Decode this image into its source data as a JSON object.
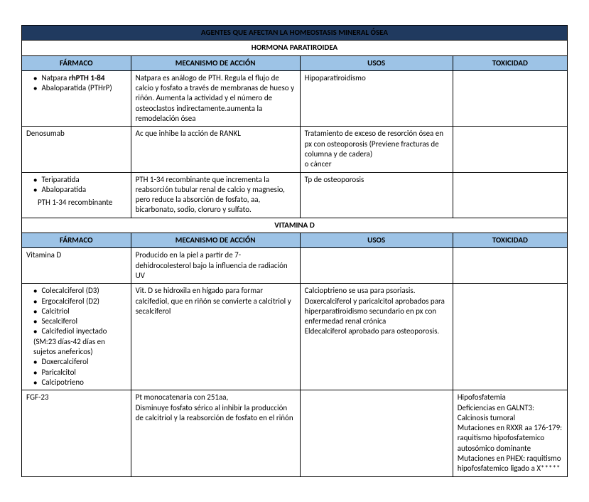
{
  "title": "AGENTES QUE AFECTAN LA HOMEOSTASIS MINERAL ÓSEA",
  "section1": "HORMONA PARATIROIDEA",
  "headers": {
    "f": "FÁRMACO",
    "m": "MECANISMO DE ACCIÓN",
    "u": "USOS",
    "t": "TOXICIDAD"
  },
  "r1": {
    "f1": "Natpara rhPTH 1-84",
    "f2": "Abaloparatida (PTHrP)",
    "m": "Natpara es análogo de PTH. Regula el flujo de calcio y fosfato a través de membranas de hueso y riñón. Aumenta la actividad y el número de osteoclastos indirectamente.aumenta la remodelación ósea",
    "u": "Hipoparatiroidismo"
  },
  "r2": {
    "f": "Denosumab",
    "m": "Ac que inhibe la acción de RANKL",
    "u": "Tratamiento de exceso de resorción ósea en px con osteoporosis (Previene fracturas de columna y de cadera)\n o cáncer"
  },
  "r3": {
    "f1": "Teriparatida",
    "f2": "Abaloparatida",
    "f3": "PTH 1-34 recombinante",
    "m": "PTH 1-34 recombinante que incrementa la reabsorción tubular renal de calcio y magnesio, pero reduce la absorción de fosfato, aa, bicarbonato, sodio, cloruro y sulfato.",
    "u": "Tp de osteoporosis"
  },
  "section2": "VITAMINA D",
  "r4": {
    "f": "Vitamina D",
    "m": "Producido en la piel a partir de 7-dehidrocolesterol bajo la influencia de radiación UV"
  },
  "r5": {
    "f1": "Colecalciferol (D3)",
    "f2": "Ergocalciferol (D2)",
    "f3": "Calcitriol",
    "f4": "Secalciferol",
    "f5": "Calcifediol inyectado (SM:23 días-42 días en sujetos anefericos)",
    "f6": "Doxercalciferol",
    "f7": "Paricalcitol",
    "f8": "Calcipotrieno",
    "m": "Vit. D se hidroxila en hígado para formar calcifediol, que en riñón se convierte a calcitriol y secalciferol",
    "u": "Calcioptrieno se usa para psoriasis.\nDoxercalciferol y paricalcitol aprobados para hiperparatiroidismo secundario en px con enfermedad renal crónica\nEldecalciferol aprobado para osteoporosis."
  },
  "r6": {
    "f": "FGF-23",
    "m": "Pt monocatenaria con 251aa,\nDisminuye fosfato sérico al inhibir la producción de calcitriol y la reabsorción de fosfato en el riñón",
    "t": "Hipofosfatemia\nDeficiencias en GALNT3: Calcinosis tumoral\nMutaciones en RXXR aa 176-179: raquitismo hipofosfatemico autosómico dominante\nMutaciones en PHEX: raquitismo hipofosfatemico ligado a X*****"
  }
}
